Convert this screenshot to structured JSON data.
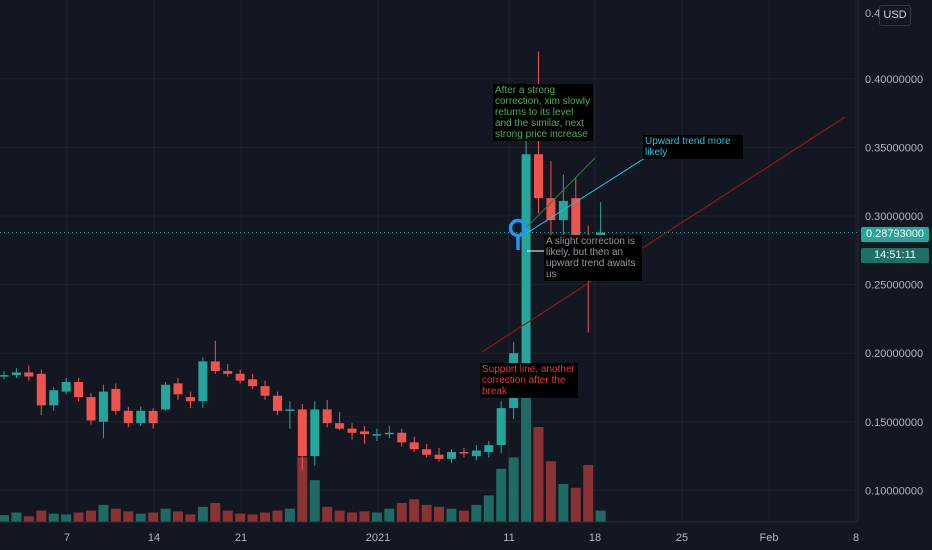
{
  "chart_data": {
    "type": "candlestick",
    "currency": "USD",
    "y_ticks": [
      "0.40000000",
      "0.35000000",
      "0.30000000",
      "0.25000000",
      "0.20000000",
      "0.15000000",
      "0.10000000"
    ],
    "y_top_tick": "0.4",
    "x_ticks": [
      "7",
      "14",
      "21",
      "2021",
      "11",
      "18",
      "25",
      "Feb",
      "8"
    ],
    "last_price": "0.28793000",
    "countdown": "14:51:11",
    "colors": {
      "up": "#26a69a",
      "down": "#ef5350",
      "up_volume": "#1f6b63",
      "down_volume": "#8a3335",
      "background": "#131722",
      "grid": "#1e222d",
      "last_price_line": "#26a69a",
      "support_line": "#8b1a1a"
    },
    "candles": [
      {
        "o": 0.184,
        "h": 0.187,
        "l": 0.181,
        "c": 0.184,
        "v": 0.18
      },
      {
        "o": 0.184,
        "h": 0.189,
        "l": 0.182,
        "c": 0.186,
        "v": 0.25
      },
      {
        "o": 0.186,
        "h": 0.191,
        "l": 0.18,
        "c": 0.183,
        "v": 0.15
      },
      {
        "o": 0.185,
        "h": 0.188,
        "l": 0.155,
        "c": 0.162,
        "v": 0.3
      },
      {
        "o": 0.162,
        "h": 0.175,
        "l": 0.158,
        "c": 0.173,
        "v": 0.22
      },
      {
        "o": 0.172,
        "h": 0.182,
        "l": 0.17,
        "c": 0.179,
        "v": 0.2
      },
      {
        "o": 0.179,
        "h": 0.182,
        "l": 0.165,
        "c": 0.168,
        "v": 0.25
      },
      {
        "o": 0.168,
        "h": 0.171,
        "l": 0.148,
        "c": 0.151,
        "v": 0.3
      },
      {
        "o": 0.15,
        "h": 0.177,
        "l": 0.138,
        "c": 0.172,
        "v": 0.45
      },
      {
        "o": 0.174,
        "h": 0.178,
        "l": 0.155,
        "c": 0.158,
        "v": 0.35
      },
      {
        "o": 0.158,
        "h": 0.161,
        "l": 0.146,
        "c": 0.149,
        "v": 0.28
      },
      {
        "o": 0.149,
        "h": 0.161,
        "l": 0.147,
        "c": 0.158,
        "v": 0.22
      },
      {
        "o": 0.158,
        "h": 0.16,
        "l": 0.145,
        "c": 0.149,
        "v": 0.25
      },
      {
        "o": 0.159,
        "h": 0.179,
        "l": 0.158,
        "c": 0.177,
        "v": 0.35
      },
      {
        "o": 0.178,
        "h": 0.182,
        "l": 0.166,
        "c": 0.17,
        "v": 0.28
      },
      {
        "o": 0.168,
        "h": 0.172,
        "l": 0.16,
        "c": 0.165,
        "v": 0.2
      },
      {
        "o": 0.165,
        "h": 0.197,
        "l": 0.16,
        "c": 0.194,
        "v": 0.4
      },
      {
        "o": 0.194,
        "h": 0.209,
        "l": 0.185,
        "c": 0.187,
        "v": 0.5
      },
      {
        "o": 0.187,
        "h": 0.192,
        "l": 0.183,
        "c": 0.185,
        "v": 0.3
      },
      {
        "o": 0.185,
        "h": 0.188,
        "l": 0.178,
        "c": 0.18,
        "v": 0.22
      },
      {
        "o": 0.181,
        "h": 0.185,
        "l": 0.174,
        "c": 0.176,
        "v": 0.2
      },
      {
        "o": 0.176,
        "h": 0.18,
        "l": 0.166,
        "c": 0.169,
        "v": 0.25
      },
      {
        "o": 0.169,
        "h": 0.172,
        "l": 0.155,
        "c": 0.158,
        "v": 0.3
      },
      {
        "o": 0.158,
        "h": 0.165,
        "l": 0.145,
        "c": 0.159,
        "v": 0.35
      },
      {
        "o": 0.159,
        "h": 0.163,
        "l": 0.115,
        "c": 0.125,
        "v": 1.7
      },
      {
        "o": 0.125,
        "h": 0.165,
        "l": 0.118,
        "c": 0.159,
        "v": 1.1
      },
      {
        "o": 0.159,
        "h": 0.166,
        "l": 0.146,
        "c": 0.149,
        "v": 0.4
      },
      {
        "o": 0.149,
        "h": 0.157,
        "l": 0.144,
        "c": 0.145,
        "v": 0.3
      },
      {
        "o": 0.145,
        "h": 0.149,
        "l": 0.137,
        "c": 0.142,
        "v": 0.25
      },
      {
        "o": 0.143,
        "h": 0.147,
        "l": 0.134,
        "c": 0.141,
        "v": 0.28
      },
      {
        "o": 0.141,
        "h": 0.145,
        "l": 0.136,
        "c": 0.141,
        "v": 0.25
      },
      {
        "o": 0.141,
        "h": 0.147,
        "l": 0.138,
        "c": 0.142,
        "v": 0.35
      },
      {
        "o": 0.142,
        "h": 0.145,
        "l": 0.132,
        "c": 0.135,
        "v": 0.5
      },
      {
        "o": 0.135,
        "h": 0.139,
        "l": 0.128,
        "c": 0.13,
        "v": 0.6
      },
      {
        "o": 0.13,
        "h": 0.134,
        "l": 0.124,
        "c": 0.126,
        "v": 0.45
      },
      {
        "o": 0.126,
        "h": 0.131,
        "l": 0.121,
        "c": 0.123,
        "v": 0.4
      },
      {
        "o": 0.123,
        "h": 0.13,
        "l": 0.12,
        "c": 0.128,
        "v": 0.35
      },
      {
        "o": 0.128,
        "h": 0.131,
        "l": 0.124,
        "c": 0.127,
        "v": 0.3
      },
      {
        "o": 0.125,
        "h": 0.133,
        "l": 0.122,
        "c": 0.129,
        "v": 0.45
      },
      {
        "o": 0.128,
        "h": 0.136,
        "l": 0.124,
        "c": 0.133,
        "v": 0.7
      },
      {
        "o": 0.133,
        "h": 0.165,
        "l": 0.127,
        "c": 0.16,
        "v": 1.4
      },
      {
        "o": 0.16,
        "h": 0.208,
        "l": 0.152,
        "c": 0.2,
        "v": 1.7
      },
      {
        "o": 0.191,
        "h": 0.39,
        "l": 0.188,
        "c": 0.345,
        "v": 3.9
      },
      {
        "o": 0.345,
        "h": 0.42,
        "l": 0.302,
        "c": 0.313,
        "v": 2.5
      },
      {
        "o": 0.313,
        "h": 0.34,
        "l": 0.262,
        "c": 0.297,
        "v": 1.6
      },
      {
        "o": 0.297,
        "h": 0.33,
        "l": 0.27,
        "c": 0.311,
        "v": 1.0
      },
      {
        "o": 0.313,
        "h": 0.328,
        "l": 0.285,
        "c": 0.286,
        "v": 0.9
      },
      {
        "o": 0.286,
        "h": 0.293,
        "l": 0.215,
        "c": 0.272,
        "v": 1.5
      },
      {
        "o": 0.272,
        "h": 0.31,
        "l": 0.256,
        "c": 0.288,
        "v": 0.3
      }
    ]
  },
  "annotations": {
    "note1": "After a strong correction, xim slowly returns to its level and the similar, next strong price increase",
    "note2": "Upward trend more likely",
    "note3": "A slight correction is likely, but then an upward trend awaits us",
    "note4": "Support line, another correction after the break"
  }
}
